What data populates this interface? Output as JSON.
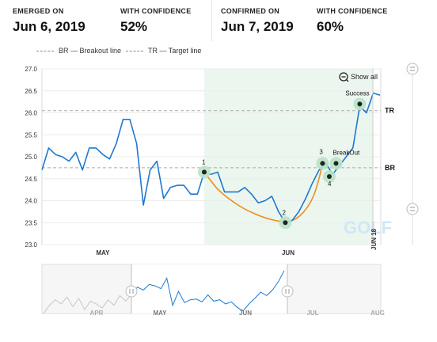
{
  "stats": [
    {
      "label": "EMERGED ON",
      "value": "Jun 6, 2019"
    },
    {
      "label": "WITH CONFIDENCE",
      "value": "52%"
    },
    {
      "label": "CONFIRMED ON",
      "value": "Jun 7, 2019"
    },
    {
      "label": "WITH CONFIDENCE",
      "value": "60%"
    }
  ],
  "legend": {
    "br": "BR — Breakout line",
    "tr": "TR — Target line"
  },
  "show_all": "Show all",
  "watermark": "GOLF",
  "colors": {
    "price": "#1f78d1",
    "pattern": "#f08c1a",
    "highlight": "#ebf6ef",
    "marker": "#b9e3c7",
    "watermark": "#cfe7f6"
  },
  "icons": {
    "zoom": "zoom-out-icon",
    "handle": "pause-bar-icon"
  },
  "chart_data": {
    "type": "line",
    "ylim": [
      23.0,
      27.0
    ],
    "yticks": [
      "27.0",
      "26.5",
      "26.0",
      "25.5",
      "25.0",
      "24.5",
      "24.0",
      "23.5",
      "23.0"
    ],
    "xtick_labels": [
      "MAY",
      "JUN"
    ],
    "date_marker": "JUN 18",
    "highlight_range": [
      24,
      49
    ],
    "series": [
      {
        "values": [
          24.7,
          25.2,
          25.05,
          25.0,
          24.9,
          25.1,
          24.7,
          25.2,
          25.2,
          25.05,
          24.95,
          25.3,
          25.85,
          25.85,
          25.3,
          23.9,
          24.7,
          24.9,
          24.05,
          24.3,
          24.35,
          24.35,
          24.15,
          24.15,
          24.65,
          24.6,
          24.65,
          24.2,
          24.2,
          24.2,
          24.3,
          24.15,
          23.95,
          24.0,
          24.1,
          23.75,
          23.5,
          23.55,
          23.75,
          24.05,
          24.4,
          24.7,
          24.85,
          24.6,
          24.8,
          25.0,
          25.2,
          26.15,
          26.0,
          26.45,
          26.4
        ]
      }
    ],
    "pattern_curve": [
      [
        24,
        24.65
      ],
      [
        25,
        24.45
      ],
      [
        26,
        24.25
      ],
      [
        28,
        24.0
      ],
      [
        30,
        23.8
      ],
      [
        33,
        23.6
      ],
      [
        36,
        23.5
      ],
      [
        38,
        23.6
      ],
      [
        40,
        24.0
      ],
      [
        41,
        24.5
      ],
      [
        41.5,
        24.85
      ]
    ],
    "reference_lines": [
      {
        "label": "BR",
        "value": 24.75
      },
      {
        "label": "TR",
        "value": 26.05
      }
    ],
    "points": [
      {
        "label": "1",
        "x": 24,
        "y": 24.65
      },
      {
        "label": "2",
        "x": 36,
        "y": 23.5
      },
      {
        "label": "3",
        "x": 41.5,
        "y": 24.85
      },
      {
        "label": "4",
        "x": 42.5,
        "y": 24.55
      },
      {
        "label": "BreakOut",
        "x": 43.5,
        "y": 24.85
      },
      {
        "label": "Success",
        "x": 47,
        "y": 26.2
      }
    ]
  },
  "navigator": {
    "month_labels": [
      "APR",
      "MAY",
      "JUN",
      "JUL",
      "AUG"
    ],
    "values": [
      23.3,
      23.9,
      24.3,
      24.0,
      24.5,
      23.8,
      24.4,
      23.6,
      24.2,
      24.0,
      23.7,
      24.3,
      23.9,
      24.6,
      24.2,
      24.7,
      25.2,
      25.0,
      25.4,
      25.3,
      25.1,
      25.85,
      23.9,
      24.9,
      24.1,
      24.3,
      24.35,
      24.15,
      24.65,
      24.2,
      24.3,
      24.0,
      24.15,
      23.75,
      23.5,
      24.0,
      24.4,
      24.85,
      24.6,
      25.0,
      25.6,
      26.4
    ]
  }
}
